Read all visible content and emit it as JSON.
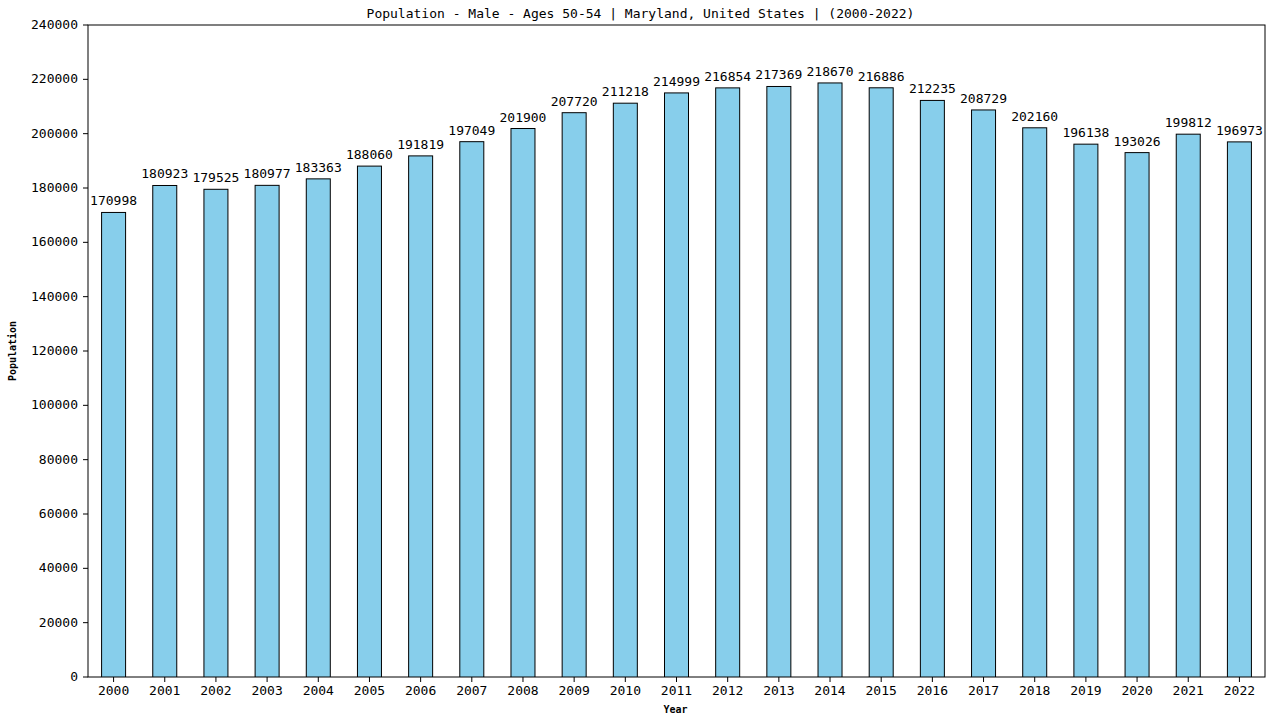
{
  "chart_data": {
    "type": "bar",
    "title": "Population - Male - Ages 50-54 | Maryland, United States |  (2000-2022)",
    "x_label": "Year",
    "y_label": "Population",
    "categories": [
      "2000",
      "2001",
      "2002",
      "2003",
      "2004",
      "2005",
      "2006",
      "2007",
      "2008",
      "2009",
      "2010",
      "2011",
      "2012",
      "2013",
      "2014",
      "2015",
      "2016",
      "2017",
      "2018",
      "2019",
      "2020",
      "2021",
      "2022"
    ],
    "values": [
      170998,
      180923,
      179525,
      180977,
      183363,
      188060,
      191819,
      197049,
      201900,
      207720,
      211218,
      214999,
      216854,
      217369,
      218670,
      216886,
      212235,
      208729,
      202160,
      196138,
      193026,
      199812,
      196973
    ],
    "color": "#87ceeb",
    "ylim": [
      0,
      240000
    ],
    "yticks": [
      0,
      20000,
      40000,
      60000,
      80000,
      100000,
      120000,
      140000,
      160000,
      180000,
      200000,
      220000,
      240000
    ],
    "grid": false,
    "data_labels": true
  }
}
